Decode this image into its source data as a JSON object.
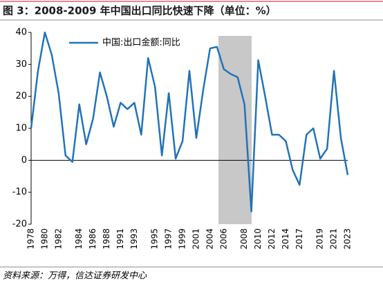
{
  "chart_data": {
    "type": "line",
    "title": "图 3：2008-2009 年中国出口同比快速下降（单位：%）",
    "source": "资料来源：万得，信达证券研发中心",
    "categories": [
      "1978",
      null,
      "1980",
      null,
      "1982",
      null,
      null,
      "1984",
      null,
      "1986",
      null,
      "1988",
      null,
      "1991",
      null,
      "1993",
      null,
      null,
      "1995",
      null,
      "1997",
      null,
      "1999",
      null,
      "2001",
      null,
      "2004",
      null,
      "2006",
      null,
      null,
      "2008",
      null,
      "2010",
      null,
      "2012",
      null,
      "2014",
      null,
      "2017",
      null,
      null,
      "2019",
      null,
      "2021",
      null,
      "2023"
    ],
    "series": [
      {
        "name": "中国:出口金额:同比",
        "color": "#2272b8",
        "values": [
          10,
          28,
          40,
          33,
          21,
          1.5,
          -0.5,
          17.5,
          5,
          13,
          27.5,
          20,
          10.5,
          18,
          16,
          18,
          8,
          32,
          23,
          1.5,
          21,
          0.5,
          6,
          28,
          7,
          22,
          35,
          35.5,
          28.5,
          27,
          26,
          17.5,
          -16,
          31.3,
          20,
          8,
          8,
          6,
          -3,
          -7.7,
          8,
          10,
          0.5,
          3.6,
          28,
          7,
          -4.6
        ]
      }
    ],
    "ylim": [
      -20,
      40
    ],
    "yticks": [
      -20,
      -10,
      0,
      10,
      20,
      30,
      40
    ],
    "legend": "top-left"
  }
}
